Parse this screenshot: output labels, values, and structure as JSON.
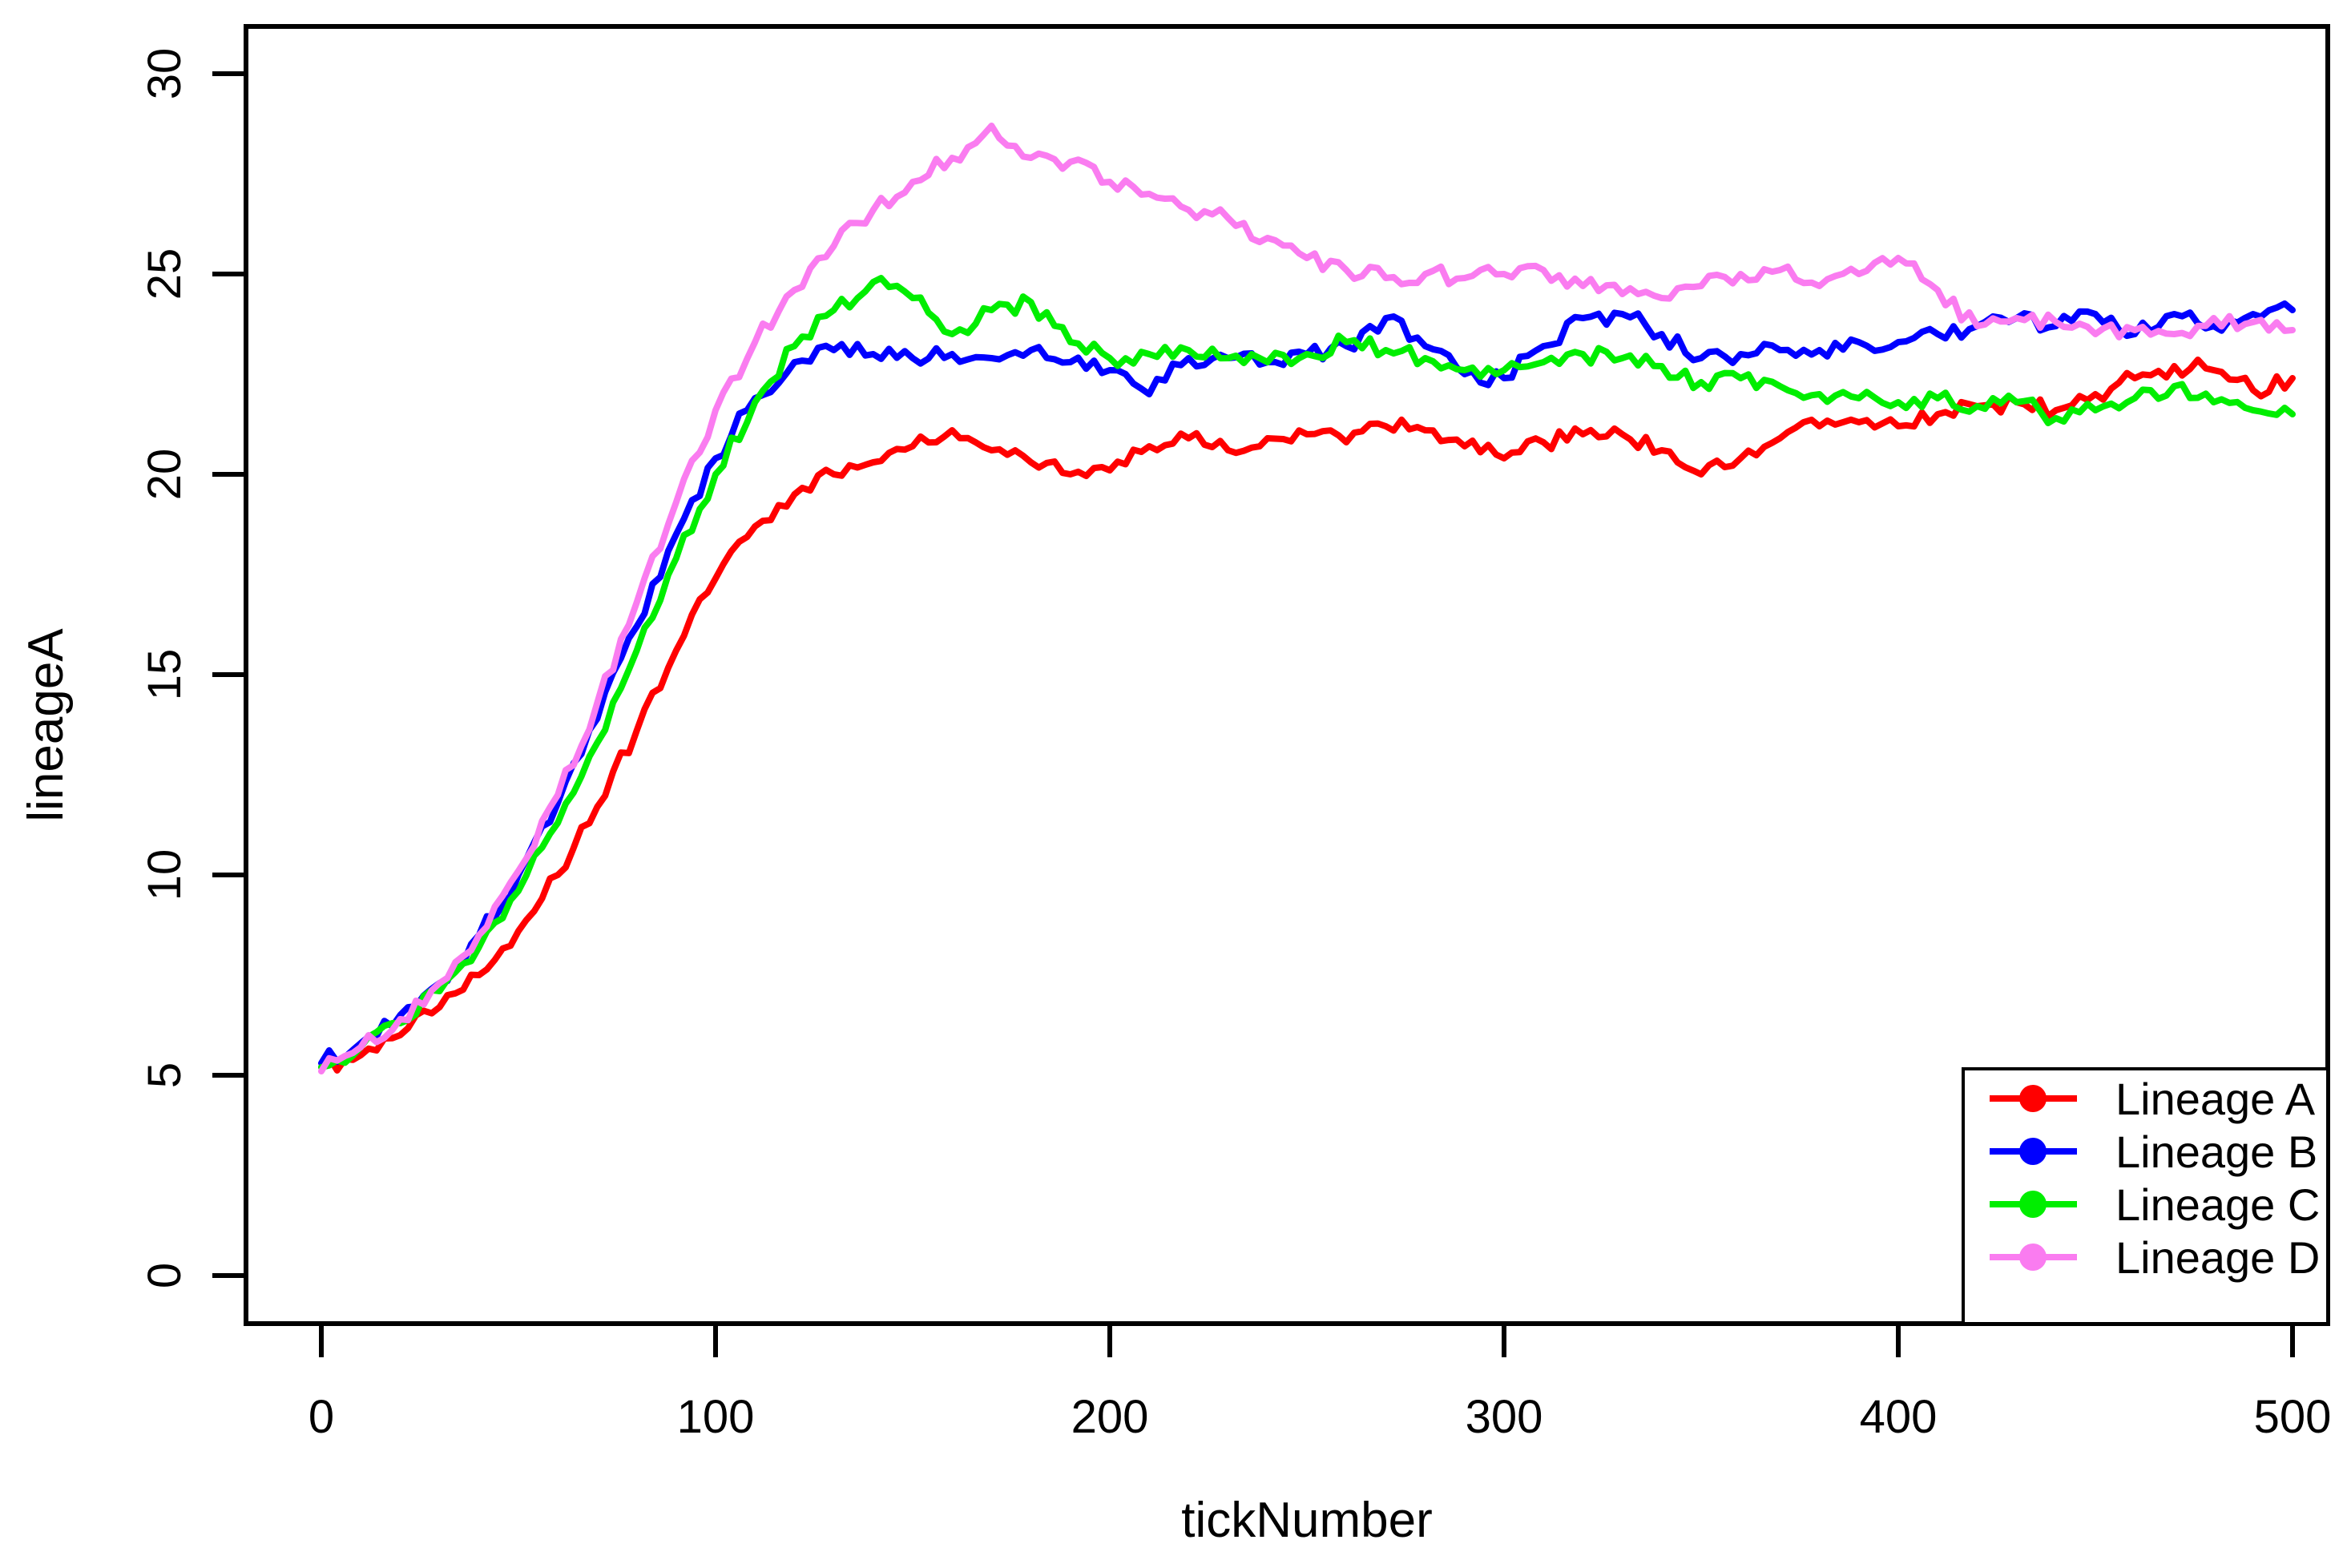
{
  "page": {
    "background": "#ffffff",
    "foreground": "#000000"
  },
  "chart_data": {
    "type": "line",
    "title": "",
    "xlabel": "tickNumber",
    "ylabel": "lineageA",
    "xlim": [
      0,
      500
    ],
    "ylim": [
      0,
      30
    ],
    "x_ticks": [
      0,
      100,
      200,
      300,
      400,
      500
    ],
    "y_ticks": [
      0,
      5,
      10,
      15,
      20,
      25,
      30
    ],
    "grid": false,
    "box": true,
    "legend": {
      "position": "bottom-right",
      "border": true,
      "marker": "filled-circle-with-line"
    },
    "x": [
      0,
      10,
      20,
      30,
      40,
      50,
      60,
      70,
      80,
      90,
      100,
      110,
      120,
      130,
      140,
      150,
      160,
      170,
      180,
      190,
      200,
      210,
      220,
      230,
      240,
      250,
      260,
      270,
      280,
      290,
      300,
      310,
      320,
      330,
      340,
      350,
      360,
      370,
      380,
      390,
      400,
      410,
      420,
      430,
      440,
      450,
      460,
      470,
      480,
      490,
      500
    ],
    "series": [
      {
        "name": "Lineage A",
        "color": "#ff0000",
        "values": [
          5.2,
          5.5,
          6.0,
          6.7,
          7.5,
          8.6,
          10.0,
          11.7,
          13.6,
          15.6,
          17.4,
          18.7,
          19.5,
          20.0,
          20.3,
          20.7,
          21.1,
          20.6,
          20.3,
          20.0,
          20.1,
          20.7,
          20.9,
          20.6,
          20.9,
          21.0,
          20.8,
          21.2,
          21.1,
          20.7,
          20.4,
          20.8,
          21.0,
          21.0,
          20.6,
          20.0,
          20.4,
          20.9,
          21.2,
          21.3,
          21.2,
          21.5,
          21.7,
          21.8,
          21.6,
          22.0,
          22.4,
          22.7,
          22.6,
          22.1,
          22.4
        ]
      },
      {
        "name": "Lineage B",
        "color": "#0000ff",
        "values": [
          5.3,
          5.8,
          6.5,
          7.3,
          8.5,
          10.0,
          11.8,
          13.9,
          16.2,
          18.5,
          20.4,
          21.9,
          22.8,
          23.1,
          23.0,
          22.9,
          23.0,
          22.9,
          23.1,
          22.8,
          22.6,
          22.0,
          22.9,
          22.9,
          22.8,
          23.0,
          23.2,
          23.9,
          23.2,
          22.5,
          22.4,
          23.2,
          23.9,
          24.0,
          23.5,
          22.9,
          23.0,
          23.1,
          23.1,
          23.3,
          23.3,
          23.5,
          23.7,
          23.9,
          23.7,
          24.0,
          23.5,
          24.0,
          23.7,
          24.0,
          24.1
        ]
      },
      {
        "name": "Lineage C",
        "color": "#00ee00",
        "values": [
          5.2,
          5.7,
          6.3,
          7.1,
          8.2,
          9.6,
          11.3,
          13.3,
          15.6,
          17.9,
          20.0,
          21.8,
          23.2,
          24.1,
          24.8,
          24.4,
          23.5,
          24.1,
          24.3,
          23.3,
          22.9,
          23.0,
          23.1,
          22.9,
          22.8,
          23.0,
          23.3,
          23.1,
          22.9,
          22.6,
          22.6,
          22.8,
          23.0,
          22.9,
          22.7,
          22.3,
          22.4,
          22.2,
          22.0,
          21.9,
          21.8,
          21.9,
          21.7,
          21.8,
          21.4,
          21.6,
          21.9,
          22.2,
          21.8,
          21.6,
          21.5
        ]
      },
      {
        "name": "Lineage D",
        "color": "#fa7cf0",
        "values": [
          5.1,
          5.7,
          6.4,
          7.3,
          8.5,
          10.1,
          12.0,
          14.3,
          16.8,
          19.3,
          21.6,
          23.3,
          24.6,
          25.7,
          26.6,
          27.3,
          27.9,
          28.7,
          27.9,
          27.8,
          27.3,
          27.0,
          26.6,
          26.4,
          25.9,
          25.4,
          25.1,
          24.9,
          25.0,
          24.9,
          25.0,
          25.1,
          24.7,
          24.5,
          24.4,
          24.7,
          25.0,
          25.1,
          24.7,
          25.0,
          25.4,
          24.6,
          23.7,
          23.9,
          23.8,
          23.5,
          23.6,
          23.5,
          23.9,
          23.8,
          23.6
        ]
      }
    ]
  }
}
